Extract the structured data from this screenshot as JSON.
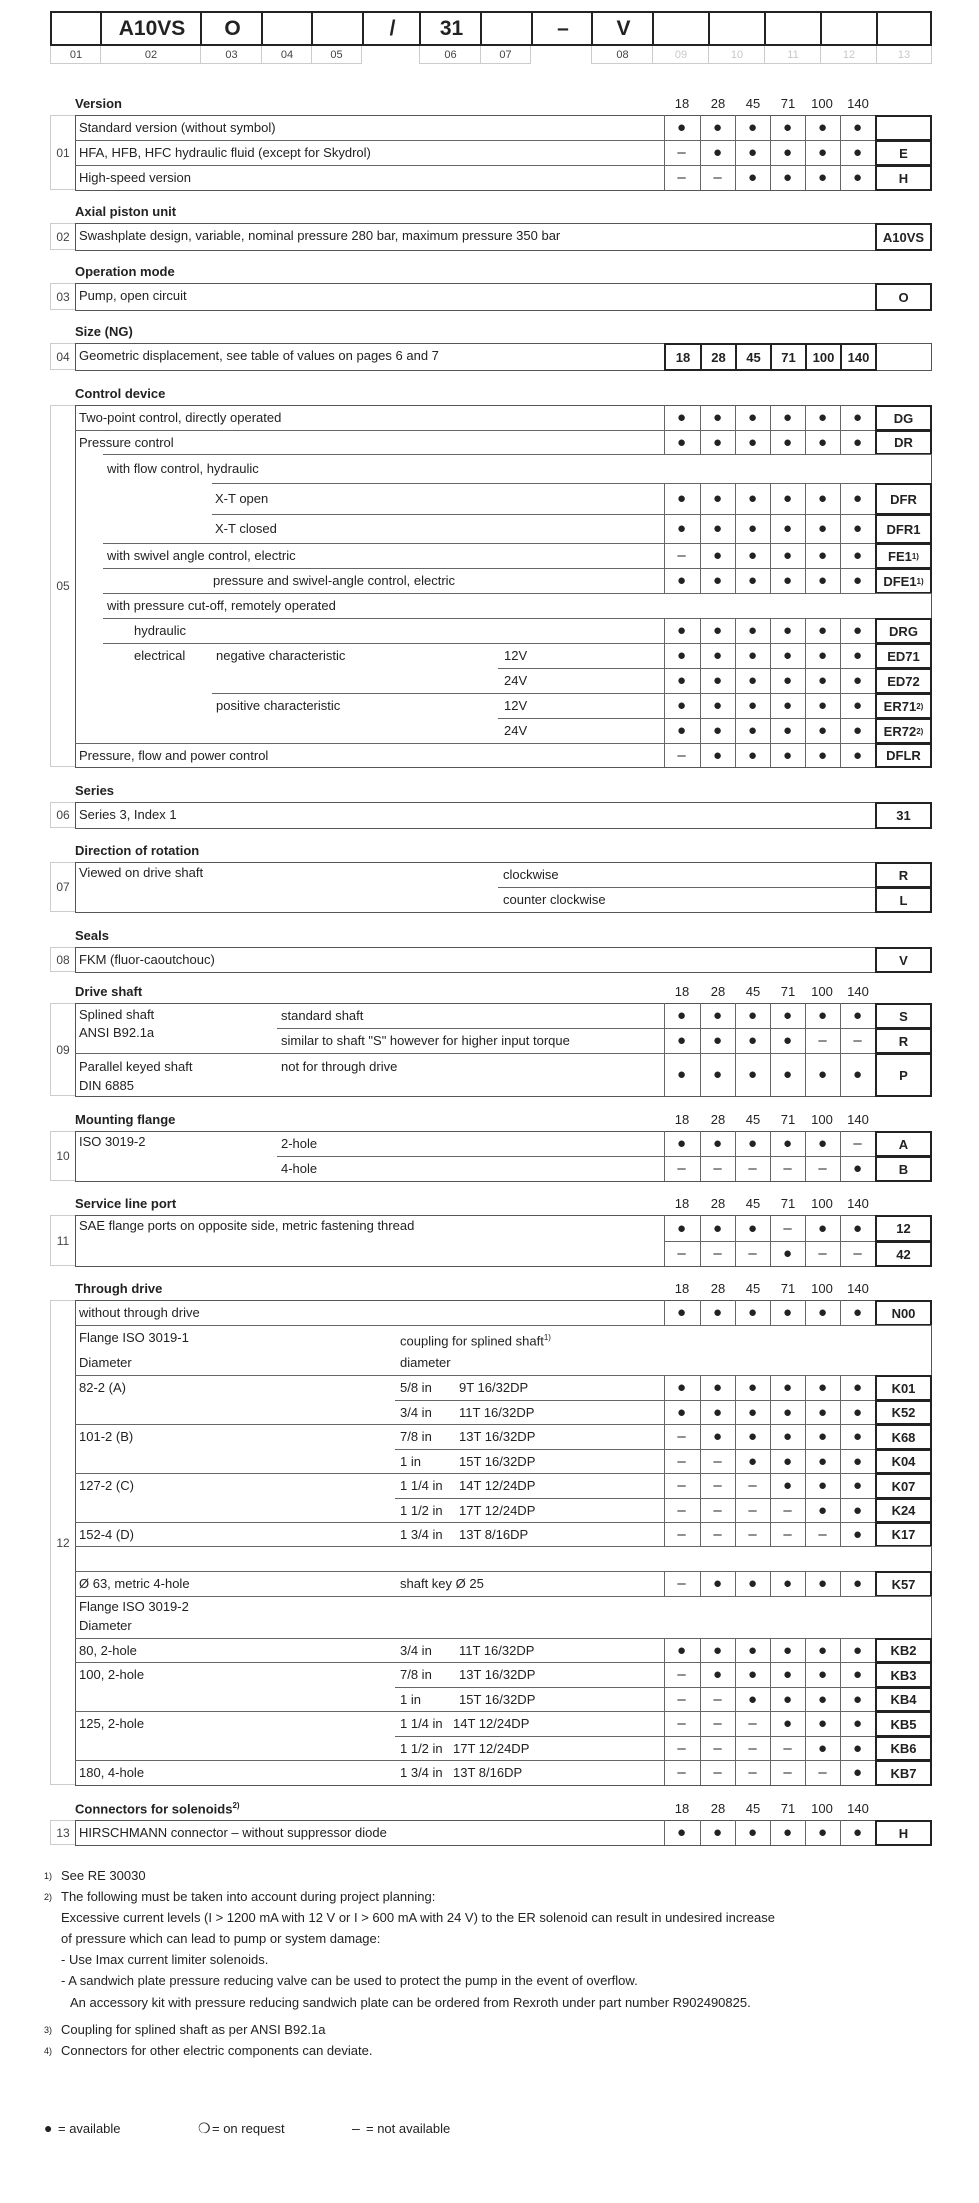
{
  "type_code": {
    "boxes": [
      "",
      "A10VS",
      "O",
      "",
      "",
      "/",
      "31",
      "",
      "–",
      "V",
      "",
      "",
      "",
      "",
      ""
    ],
    "labels": [
      "01",
      "02",
      "03",
      "04",
      "05",
      "",
      "06",
      "07",
      "",
      "08",
      "09",
      "10",
      "11",
      "12",
      "13"
    ]
  },
  "sizes": [
    "18",
    "28",
    "45",
    "71",
    "100",
    "140"
  ],
  "sections": [
    {
      "num": "01",
      "title": "Version",
      "show_sizes": true,
      "rows": [
        {
          "texts": [
            "Standard version (without symbol)"
          ],
          "avail": [
            "●",
            "●",
            "●",
            "●",
            "●",
            "●"
          ],
          "code": ""
        },
        {
          "texts": [
            "HFA, HFB, HFC hydraulic fluid (except for Skydrol)"
          ],
          "avail": [
            "–",
            "●",
            "●",
            "●",
            "●",
            "●"
          ],
          "code": "E"
        },
        {
          "texts": [
            "High-speed version"
          ],
          "avail": [
            "–",
            "–",
            "●",
            "●",
            "●",
            "●"
          ],
          "code": "H"
        }
      ]
    },
    {
      "num": "02",
      "title": "Axial piston unit",
      "rows": [
        {
          "texts": [
            "Swashplate design, variable, nominal pressure 280 bar, maximum pressure 350 bar"
          ],
          "code": "A10VS"
        }
      ]
    },
    {
      "num": "03",
      "title": "Operation mode",
      "rows": [
        {
          "texts": [
            "Pump, open circuit"
          ],
          "code": "O"
        }
      ]
    },
    {
      "num": "04",
      "title": "Size (NG)",
      "rows": [
        {
          "texts": [
            "Geometric displacement, see table of values on pages 6 and 7"
          ],
          "size_boxes": [
            "18",
            "28",
            "45",
            "71",
            "100",
            "140"
          ]
        }
      ]
    },
    {
      "num": "05",
      "title": "Control device",
      "rows": [
        {
          "texts": [
            "Two-point control, directly operated"
          ],
          "avail": [
            "●",
            "●",
            "●",
            "●",
            "●",
            "●"
          ],
          "code": "DG"
        },
        {
          "texts": [
            "Pressure control"
          ],
          "avail": [
            "●",
            "●",
            "●",
            "●",
            "●",
            "●"
          ],
          "code": "DR"
        },
        {
          "texts": [
            "with flow control, hydraulic"
          ]
        },
        {
          "texts": [
            "X-T open"
          ],
          "avail": [
            "●",
            "●",
            "●",
            "●",
            "●",
            "●"
          ],
          "code": "DFR"
        },
        {
          "texts": [
            "X-T closed"
          ],
          "avail": [
            "●",
            "●",
            "●",
            "●",
            "●",
            "●"
          ],
          "code": "DFR1"
        },
        {
          "texts": [
            "with swivel angle control, electric"
          ],
          "avail": [
            "–",
            "●",
            "●",
            "●",
            "●",
            "●"
          ],
          "code": "FE1",
          "code_sup": "1)"
        },
        {
          "texts": [
            "pressure and swivel-angle control, electric"
          ],
          "avail": [
            "●",
            "●",
            "●",
            "●",
            "●",
            "●"
          ],
          "code": "DFE1",
          "code_sup": "1)"
        },
        {
          "texts": [
            "with pressure cut-off, remotely operated"
          ]
        },
        {
          "texts": [
            "hydraulic"
          ],
          "avail": [
            "●",
            "●",
            "●",
            "●",
            "●",
            "●"
          ],
          "code": "DRG"
        },
        {
          "texts": [
            "electrical",
            "negative characteristic",
            "12V"
          ],
          "avail": [
            "●",
            "●",
            "●",
            "●",
            "●",
            "●"
          ],
          "code": "ED71"
        },
        {
          "texts": [
            "24V"
          ],
          "avail": [
            "●",
            "●",
            "●",
            "●",
            "●",
            "●"
          ],
          "code": "ED72"
        },
        {
          "texts": [
            "positive characteristic",
            "12V"
          ],
          "avail": [
            "●",
            "●",
            "●",
            "●",
            "●",
            "●"
          ],
          "code": "ER71",
          "code_sup": "2)"
        },
        {
          "texts": [
            "24V"
          ],
          "avail": [
            "●",
            "●",
            "●",
            "●",
            "●",
            "●"
          ],
          "code": "ER72",
          "code_sup": "2)"
        },
        {
          "texts": [
            "Pressure, flow and power control"
          ],
          "avail": [
            "–",
            "●",
            "●",
            "●",
            "●",
            "●"
          ],
          "code": "DFLR"
        }
      ]
    },
    {
      "num": "06",
      "title": "Series",
      "rows": [
        {
          "texts": [
            "Series 3, Index 1"
          ],
          "code": "31"
        }
      ]
    },
    {
      "num": "07",
      "title": "Direction of rotation",
      "rows": [
        {
          "texts": [
            "Viewed on drive shaft",
            "clockwise"
          ],
          "code": "R"
        },
        {
          "texts": [
            "counter clockwise"
          ],
          "code": "L"
        }
      ]
    },
    {
      "num": "08",
      "title": "Seals",
      "rows": [
        {
          "texts": [
            "FKM (fluor-caoutchouc)"
          ],
          "code": "V"
        }
      ]
    },
    {
      "num": "09",
      "title": "Drive shaft",
      "show_sizes": true,
      "rows": [
        {
          "texts": [
            "Splined shaft",
            "ANSI B92.1a",
            "standard shaft"
          ],
          "avail": [
            "●",
            "●",
            "●",
            "●",
            "●",
            "●"
          ],
          "code": "S"
        },
        {
          "texts": [
            "similar to shaft \"S\" however for higher input torque"
          ],
          "avail": [
            "●",
            "●",
            "●",
            "●",
            "–",
            "–"
          ],
          "code": "R"
        },
        {
          "texts": [
            "Parallel keyed shaft",
            "DIN 6885",
            "not for through drive"
          ],
          "avail": [
            "●",
            "●",
            "●",
            "●",
            "●",
            "●"
          ],
          "code": "P"
        }
      ]
    },
    {
      "num": "10",
      "title": "Mounting flange",
      "show_sizes": true,
      "rows": [
        {
          "texts": [
            "ISO 3019-2",
            "2-hole"
          ],
          "avail": [
            "●",
            "●",
            "●",
            "●",
            "●",
            "–"
          ],
          "code": "A"
        },
        {
          "texts": [
            "4-hole"
          ],
          "avail": [
            "–",
            "–",
            "–",
            "–",
            "–",
            "●"
          ],
          "code": "B"
        }
      ]
    },
    {
      "num": "11",
      "title": "Service line port",
      "show_sizes": true,
      "rows": [
        {
          "texts": [
            "SAE flange ports on opposite side, metric fastening thread"
          ],
          "avail": [
            "●",
            "●",
            "●",
            "–",
            "●",
            "●"
          ],
          "code": "12"
        },
        {
          "texts": [],
          "avail": [
            "–",
            "–",
            "–",
            "●",
            "–",
            "–"
          ],
          "code": "42"
        }
      ]
    },
    {
      "num": "12",
      "title": "Through drive",
      "show_sizes": true,
      "rows": [
        {
          "texts": [
            "without through drive"
          ],
          "avail": [
            "●",
            "●",
            "●",
            "●",
            "●",
            "●"
          ],
          "code": "N00"
        },
        {
          "texts": [
            "Flange ISO 3019-1",
            "Diameter",
            "coupling for splined shaft",
            "diameter"
          ],
          "text_sups": {
            "2": "1)"
          }
        },
        {
          "texts": [
            "82-2 (A)",
            "5/8 in",
            "9T 16/32DP"
          ],
          "avail": [
            "●",
            "●",
            "●",
            "●",
            "●",
            "●"
          ],
          "code": "K01"
        },
        {
          "texts": [
            "3/4 in",
            "11T 16/32DP"
          ],
          "avail": [
            "●",
            "●",
            "●",
            "●",
            "●",
            "●"
          ],
          "code": "K52"
        },
        {
          "texts": [
            "101-2 (B)",
            "7/8 in",
            "13T 16/32DP"
          ],
          "avail": [
            "–",
            "●",
            "●",
            "●",
            "●",
            "●"
          ],
          "code": "K68"
        },
        {
          "texts": [
            "1 in",
            "15T 16/32DP"
          ],
          "avail": [
            "–",
            "–",
            "●",
            "●",
            "●",
            "●"
          ],
          "code": "K04"
        },
        {
          "texts": [
            "127-2 (C)",
            "1 1/4 in",
            "14T 12/24DP"
          ],
          "avail": [
            "–",
            "–",
            "–",
            "●",
            "●",
            "●"
          ],
          "code": "K07"
        },
        {
          "texts": [
            "1 1/2 in",
            "17T 12/24DP"
          ],
          "avail": [
            "–",
            "–",
            "–",
            "–",
            "●",
            "●"
          ],
          "code": "K24"
        },
        {
          "texts": [
            "152-4 (D)",
            "1 3/4 in",
            "13T 8/16DP"
          ],
          "avail": [
            "–",
            "–",
            "–",
            "–",
            "–",
            "●"
          ],
          "code": "K17"
        },
        {
          "texts": []
        },
        {
          "texts": [
            "Ø 63, metric 4-hole",
            "shaft key Ø 25"
          ],
          "avail": [
            "–",
            "●",
            "●",
            "●",
            "●",
            "●"
          ],
          "code": "K57"
        },
        {
          "texts": [
            "Flange ISO 3019-2",
            "Diameter"
          ]
        },
        {
          "texts": [
            "80, 2-hole",
            "3/4 in",
            "11T 16/32DP"
          ],
          "avail": [
            "●",
            "●",
            "●",
            "●",
            "●",
            "●"
          ],
          "code": "KB2"
        },
        {
          "texts": [
            "100, 2-hole",
            "7/8 in",
            "13T 16/32DP"
          ],
          "avail": [
            "–",
            "●",
            "●",
            "●",
            "●",
            "●"
          ],
          "code": "KB3"
        },
        {
          "texts": [
            "1 in",
            "15T 16/32DP"
          ],
          "avail": [
            "–",
            "–",
            "●",
            "●",
            "●",
            "●"
          ],
          "code": "KB4"
        },
        {
          "texts": [
            "125, 2-hole",
            "1 1/4 in",
            "14T 12/24DP"
          ],
          "avail": [
            "–",
            "–",
            "–",
            "●",
            "●",
            "●"
          ],
          "code": "KB5"
        },
        {
          "texts": [
            "1 1/2 in",
            "17T 12/24DP"
          ],
          "avail": [
            "–",
            "–",
            "–",
            "–",
            "●",
            "●"
          ],
          "code": "KB6"
        },
        {
          "texts": [
            "180, 4-hole",
            "1 3/4 in",
            "13T 8/16DP"
          ],
          "avail": [
            "–",
            "–",
            "–",
            "–",
            "–",
            "●"
          ],
          "code": "KB7"
        }
      ]
    },
    {
      "num": "13",
      "title": "Connectors for solenoids",
      "title_sup": "2)",
      "show_sizes": true,
      "rows": [
        {
          "texts": [
            "HIRSCHMANN connector – without suppressor diode"
          ],
          "avail": [
            "●",
            "●",
            "●",
            "●",
            "●",
            "●"
          ],
          "code": "H"
        }
      ]
    }
  ],
  "footnotes": [
    {
      "mark": "1)",
      "lines": [
        "See RE 30030"
      ]
    },
    {
      "mark": "2)",
      "lines": [
        "The following must be taken into account during project planning:",
        "Excessive current levels (I > 1200 mA with 12 V or I > 600 mA with 24 V) to the ER solenoid can result in undesired increase",
        "of pressure which can lead to pump or system damage:",
        "- Use Imax current limiter solenoids.",
        "- A sandwich plate pressure reducing valve can be used to protect the pump in the event of overflow.",
        "An accessory kit with pressure reducing sandwich plate can be ordered from Rexroth under part number R902490825."
      ]
    },
    {
      "mark": "3)",
      "lines": [
        "Coupling for splined shaft as per ANSI B92.1a"
      ]
    },
    {
      "mark": "4)",
      "lines": [
        "Connectors for other electric components can deviate."
      ]
    }
  ],
  "legend": [
    {
      "symbol": "●",
      "label": "= available"
    },
    {
      "symbol": "❍",
      "label": "= on request"
    },
    {
      "symbol": "–",
      "label": "= not available"
    }
  ]
}
